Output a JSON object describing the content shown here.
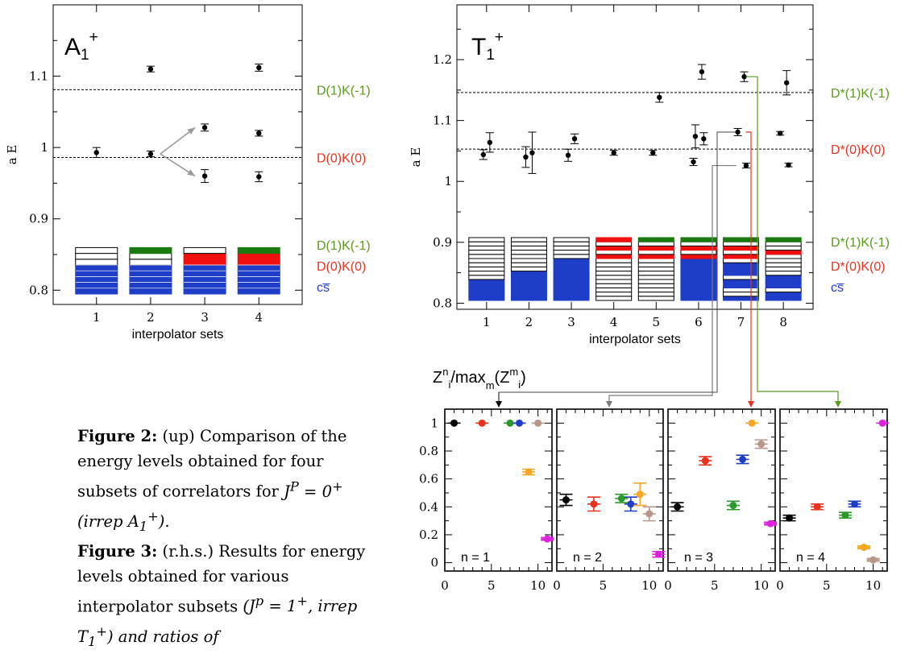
{
  "chart_data": [
    {
      "type": "scatter",
      "panel_label": "A1+",
      "panel_label_main": "A",
      "panel_label_sub": "1",
      "panel_label_sup": "+",
      "ylabel": "a E",
      "xlabel": "interpolator sets",
      "xticks": [
        "1",
        "2",
        "3",
        "4"
      ],
      "yticks": [
        "0.8",
        "0.9",
        "1",
        "1.1"
      ],
      "xlim": [
        0.2,
        4.8
      ],
      "ylim": [
        0.78,
        1.2
      ],
      "thresholds": [
        {
          "label": "D(1)K(-1)",
          "value": 1.081,
          "color": "#5b9a1e"
        },
        {
          "label": "D(0)K(0)",
          "value": 0.986,
          "color": "#e8321e"
        }
      ],
      "points": [
        {
          "x": 1,
          "y": 0.993,
          "err": 0.007
        },
        {
          "x": 2,
          "y": 1.11,
          "err": 0.004
        },
        {
          "x": 2,
          "y": 0.991,
          "err": 0.004
        },
        {
          "x": 3,
          "y": 1.028,
          "err": 0.005
        },
        {
          "x": 3,
          "y": 0.96,
          "err": 0.009
        },
        {
          "x": 4,
          "y": 1.112,
          "err": 0.005
        },
        {
          "x": 4,
          "y": 1.02,
          "err": 0.004
        },
        {
          "x": 4,
          "y": 0.959,
          "err": 0.007
        }
      ],
      "arrows": [
        {
          "from": [
            2,
            0.991
          ],
          "to": [
            3,
            1.028
          ]
        },
        {
          "from": [
            2,
            0.991
          ],
          "to": [
            3,
            0.96
          ]
        }
      ],
      "operator_stacks": [
        [
          "b",
          "b",
          "b",
          "b",
          "b",
          "w",
          "w",
          "w"
        ],
        [
          "b",
          "b",
          "b",
          "b",
          "b",
          "w",
          "w",
          "g"
        ],
        [
          "b",
          "b",
          "b",
          "b",
          "b",
          "r",
          "r",
          "w"
        ],
        [
          "b",
          "b",
          "b",
          "b",
          "b",
          "r",
          "r",
          "g"
        ]
      ],
      "legend": [
        {
          "label": "D(1)K(-1)",
          "color": "#5b9a1e"
        },
        {
          "label": "D(0)K(0)",
          "color": "#e8321e"
        },
        {
          "label": "cs̅",
          "color": "#1f3ec8"
        }
      ]
    },
    {
      "type": "scatter",
      "panel_label": "T1+",
      "panel_label_main": "T",
      "panel_label_sub": "1",
      "panel_label_sup": "+",
      "ylabel": "a E",
      "xlabel": "interpolator sets",
      "xticks": [
        "1",
        "2",
        "3",
        "4",
        "5",
        "6",
        "7",
        "8"
      ],
      "yticks": [
        "0.8",
        "0.9",
        "1",
        "1.1",
        "1.2"
      ],
      "xlim": [
        0.3,
        8.7
      ],
      "ylim": [
        0.79,
        1.29
      ],
      "thresholds": [
        {
          "label": "D*(1)K(-1)",
          "value": 1.146,
          "color": "#5b9a1e"
        },
        {
          "label": "D*(0)K(0)",
          "value": 1.053,
          "color": "#e8321e"
        }
      ],
      "points": [
        {
          "x": 1,
          "y": 1.064,
          "err": 0.016
        },
        {
          "x": 1,
          "y": 1.044,
          "err": 0.008
        },
        {
          "x": 2,
          "y": 1.047,
          "err": 0.034
        },
        {
          "x": 2,
          "y": 1.04,
          "err": 0.017
        },
        {
          "x": 3,
          "y": 1.07,
          "err": 0.008
        },
        {
          "x": 3,
          "y": 1.043,
          "err": 0.01
        },
        {
          "x": 4,
          "y": 1.047,
          "err": 0.004
        },
        {
          "x": 5,
          "y": 1.138,
          "err": 0.008
        },
        {
          "x": 5,
          "y": 1.047,
          "err": 0.004
        },
        {
          "x": 6,
          "y": 1.18,
          "err": 0.012
        },
        {
          "x": 6,
          "y": 1.074,
          "err": 0.019
        },
        {
          "x": 6,
          "y": 1.07,
          "err": 0.01
        },
        {
          "x": 6,
          "y": 1.032,
          "err": 0.006
        },
        {
          "x": 7,
          "y": 1.172,
          "err": 0.008
        },
        {
          "x": 7,
          "y": 1.081,
          "err": 0.006
        },
        {
          "x": 7,
          "y": 1.026,
          "err": 0.004
        },
        {
          "x": 8,
          "y": 1.162,
          "err": 0.02
        },
        {
          "x": 8,
          "y": 1.079,
          "err": 0.003
        },
        {
          "x": 8,
          "y": 1.027,
          "err": 0.003
        }
      ],
      "operator_stacks": [
        [
          "b",
          "b",
          "b",
          "b",
          "b",
          "w",
          "w",
          "w",
          "w",
          "w",
          "w",
          "w",
          "w",
          "w",
          "w"
        ],
        [
          "b",
          "b",
          "b",
          "b",
          "b",
          "b",
          "b",
          "w",
          "w",
          "w",
          "w",
          "w",
          "w",
          "w",
          "w"
        ],
        [
          "b",
          "b",
          "b",
          "b",
          "b",
          "b",
          "b",
          "b",
          "b",
          "b",
          "w",
          "w",
          "w",
          "w",
          "w"
        ],
        [
          "w",
          "w",
          "w",
          "w",
          "w",
          "w",
          "w",
          "w",
          "w",
          "w",
          "r",
          "w",
          "r",
          "w",
          "r"
        ],
        [
          "w",
          "w",
          "w",
          "w",
          "w",
          "w",
          "w",
          "w",
          "w",
          "w",
          "r",
          "w",
          "r",
          "w",
          "g"
        ],
        [
          "b",
          "b",
          "b",
          "b",
          "b",
          "b",
          "b",
          "b",
          "b",
          "b",
          "r",
          "w",
          "r",
          "w",
          "g"
        ],
        [
          "b",
          "w",
          "w",
          "b",
          "b",
          "w",
          "b",
          "b",
          "b",
          "w",
          "r",
          "w",
          "r",
          "w",
          "g"
        ],
        [
          "b",
          "b",
          "w",
          "b",
          "b",
          "b",
          "w",
          "w",
          "w",
          "w",
          "w",
          "r",
          "w",
          "w",
          "g"
        ]
      ],
      "legend": [
        {
          "label": "D*(1)K(-1)",
          "color": "#5b9a1e"
        },
        {
          "label": "D*(0)K(0)",
          "color": "#e8321e"
        },
        {
          "label": "cs̅",
          "color": "#1f3ec8"
        }
      ]
    },
    {
      "type": "scatter",
      "title_parts": {
        "Z": "Z",
        "n": "n",
        "i1": "i",
        "slash": "/max",
        "m": "m",
        "open": "(Z",
        "msup": "m",
        "i2": "i",
        "close": ")"
      },
      "xticks": [
        "0",
        "5",
        "10"
      ],
      "yticks": [
        "0",
        "0.2",
        "0.4",
        "0.6",
        "0.8",
        "1"
      ],
      "xlim": [
        0,
        11.5
      ],
      "ylim": [
        -0.06,
        1.1
      ],
      "panels": [
        {
          "label": "n = 1",
          "points": [
            {
              "x": 1,
              "y": 1.0,
              "err": 0.0,
              "color": "#000000"
            },
            {
              "x": 4,
              "y": 1.0,
              "err": 0.0,
              "color": "#e8321e"
            },
            {
              "x": 7,
              "y": 1.0,
              "err": 0.0,
              "color": "#2a9a2a"
            },
            {
              "x": 8,
              "y": 1.0,
              "err": 0.0,
              "color": "#1f3ec8"
            },
            {
              "x": 9,
              "y": 0.65,
              "err": 0.02,
              "color": "#f5a623"
            },
            {
              "x": 10,
              "y": 1.0,
              "err": 0.0,
              "color": "#b8968a"
            },
            {
              "x": 11,
              "y": 0.17,
              "err": 0.01,
              "color": "#e020e0"
            }
          ]
        },
        {
          "label": "n = 2",
          "points": [
            {
              "x": 1,
              "y": 0.45,
              "err": 0.04,
              "color": "#000000"
            },
            {
              "x": 4,
              "y": 0.42,
              "err": 0.05,
              "color": "#e8321e"
            },
            {
              "x": 7,
              "y": 0.46,
              "err": 0.03,
              "color": "#2a9a2a"
            },
            {
              "x": 8,
              "y": 0.42,
              "err": 0.05,
              "color": "#1f3ec8"
            },
            {
              "x": 9,
              "y": 0.49,
              "err": 0.08,
              "color": "#f5a623"
            },
            {
              "x": 10,
              "y": 0.35,
              "err": 0.05,
              "color": "#b8968a"
            },
            {
              "x": 11,
              "y": 0.06,
              "err": 0.02,
              "color": "#e020e0"
            }
          ]
        },
        {
          "label": "n = 3",
          "points": [
            {
              "x": 1,
              "y": 0.4,
              "err": 0.03,
              "color": "#000000"
            },
            {
              "x": 4,
              "y": 0.73,
              "err": 0.03,
              "color": "#e8321e"
            },
            {
              "x": 7,
              "y": 0.41,
              "err": 0.03,
              "color": "#2a9a2a"
            },
            {
              "x": 8,
              "y": 0.74,
              "err": 0.03,
              "color": "#1f3ec8"
            },
            {
              "x": 9,
              "y": 1.0,
              "err": 0.0,
              "color": "#f5a623"
            },
            {
              "x": 10,
              "y": 0.85,
              "err": 0.03,
              "color": "#b8968a"
            },
            {
              "x": 11,
              "y": 0.28,
              "err": 0.01,
              "color": "#e020e0"
            }
          ]
        },
        {
          "label": "n = 4",
          "points": [
            {
              "x": 1,
              "y": 0.32,
              "err": 0.02,
              "color": "#000000"
            },
            {
              "x": 4,
              "y": 0.4,
              "err": 0.02,
              "color": "#e8321e"
            },
            {
              "x": 7,
              "y": 0.34,
              "err": 0.02,
              "color": "#2a9a2a"
            },
            {
              "x": 8,
              "y": 0.42,
              "err": 0.02,
              "color": "#1f3ec8"
            },
            {
              "x": 9,
              "y": 0.11,
              "err": 0.01,
              "color": "#f5a623"
            },
            {
              "x": 10,
              "y": 0.02,
              "err": 0.01,
              "color": "#b8968a"
            },
            {
              "x": 11,
              "y": 1.0,
              "err": 0.0,
              "color": "#e020e0"
            }
          ]
        }
      ]
    }
  ],
  "caption": {
    "fig2_label": "Figure 2:",
    "fig2_text": "(up) Comparison of the energy levels obtained for four subsets of correlators for",
    "fig2_math": "J^P = 0^+ (irrep A_1^+).",
    "fig3_label": "Figure 3:",
    "fig3_text": "(r.h.s.) Results for energy levels obtained for various interpolator subsets",
    "fig3_math": "(J^p = 1^+, irrep T_1^+) and ratios of"
  }
}
